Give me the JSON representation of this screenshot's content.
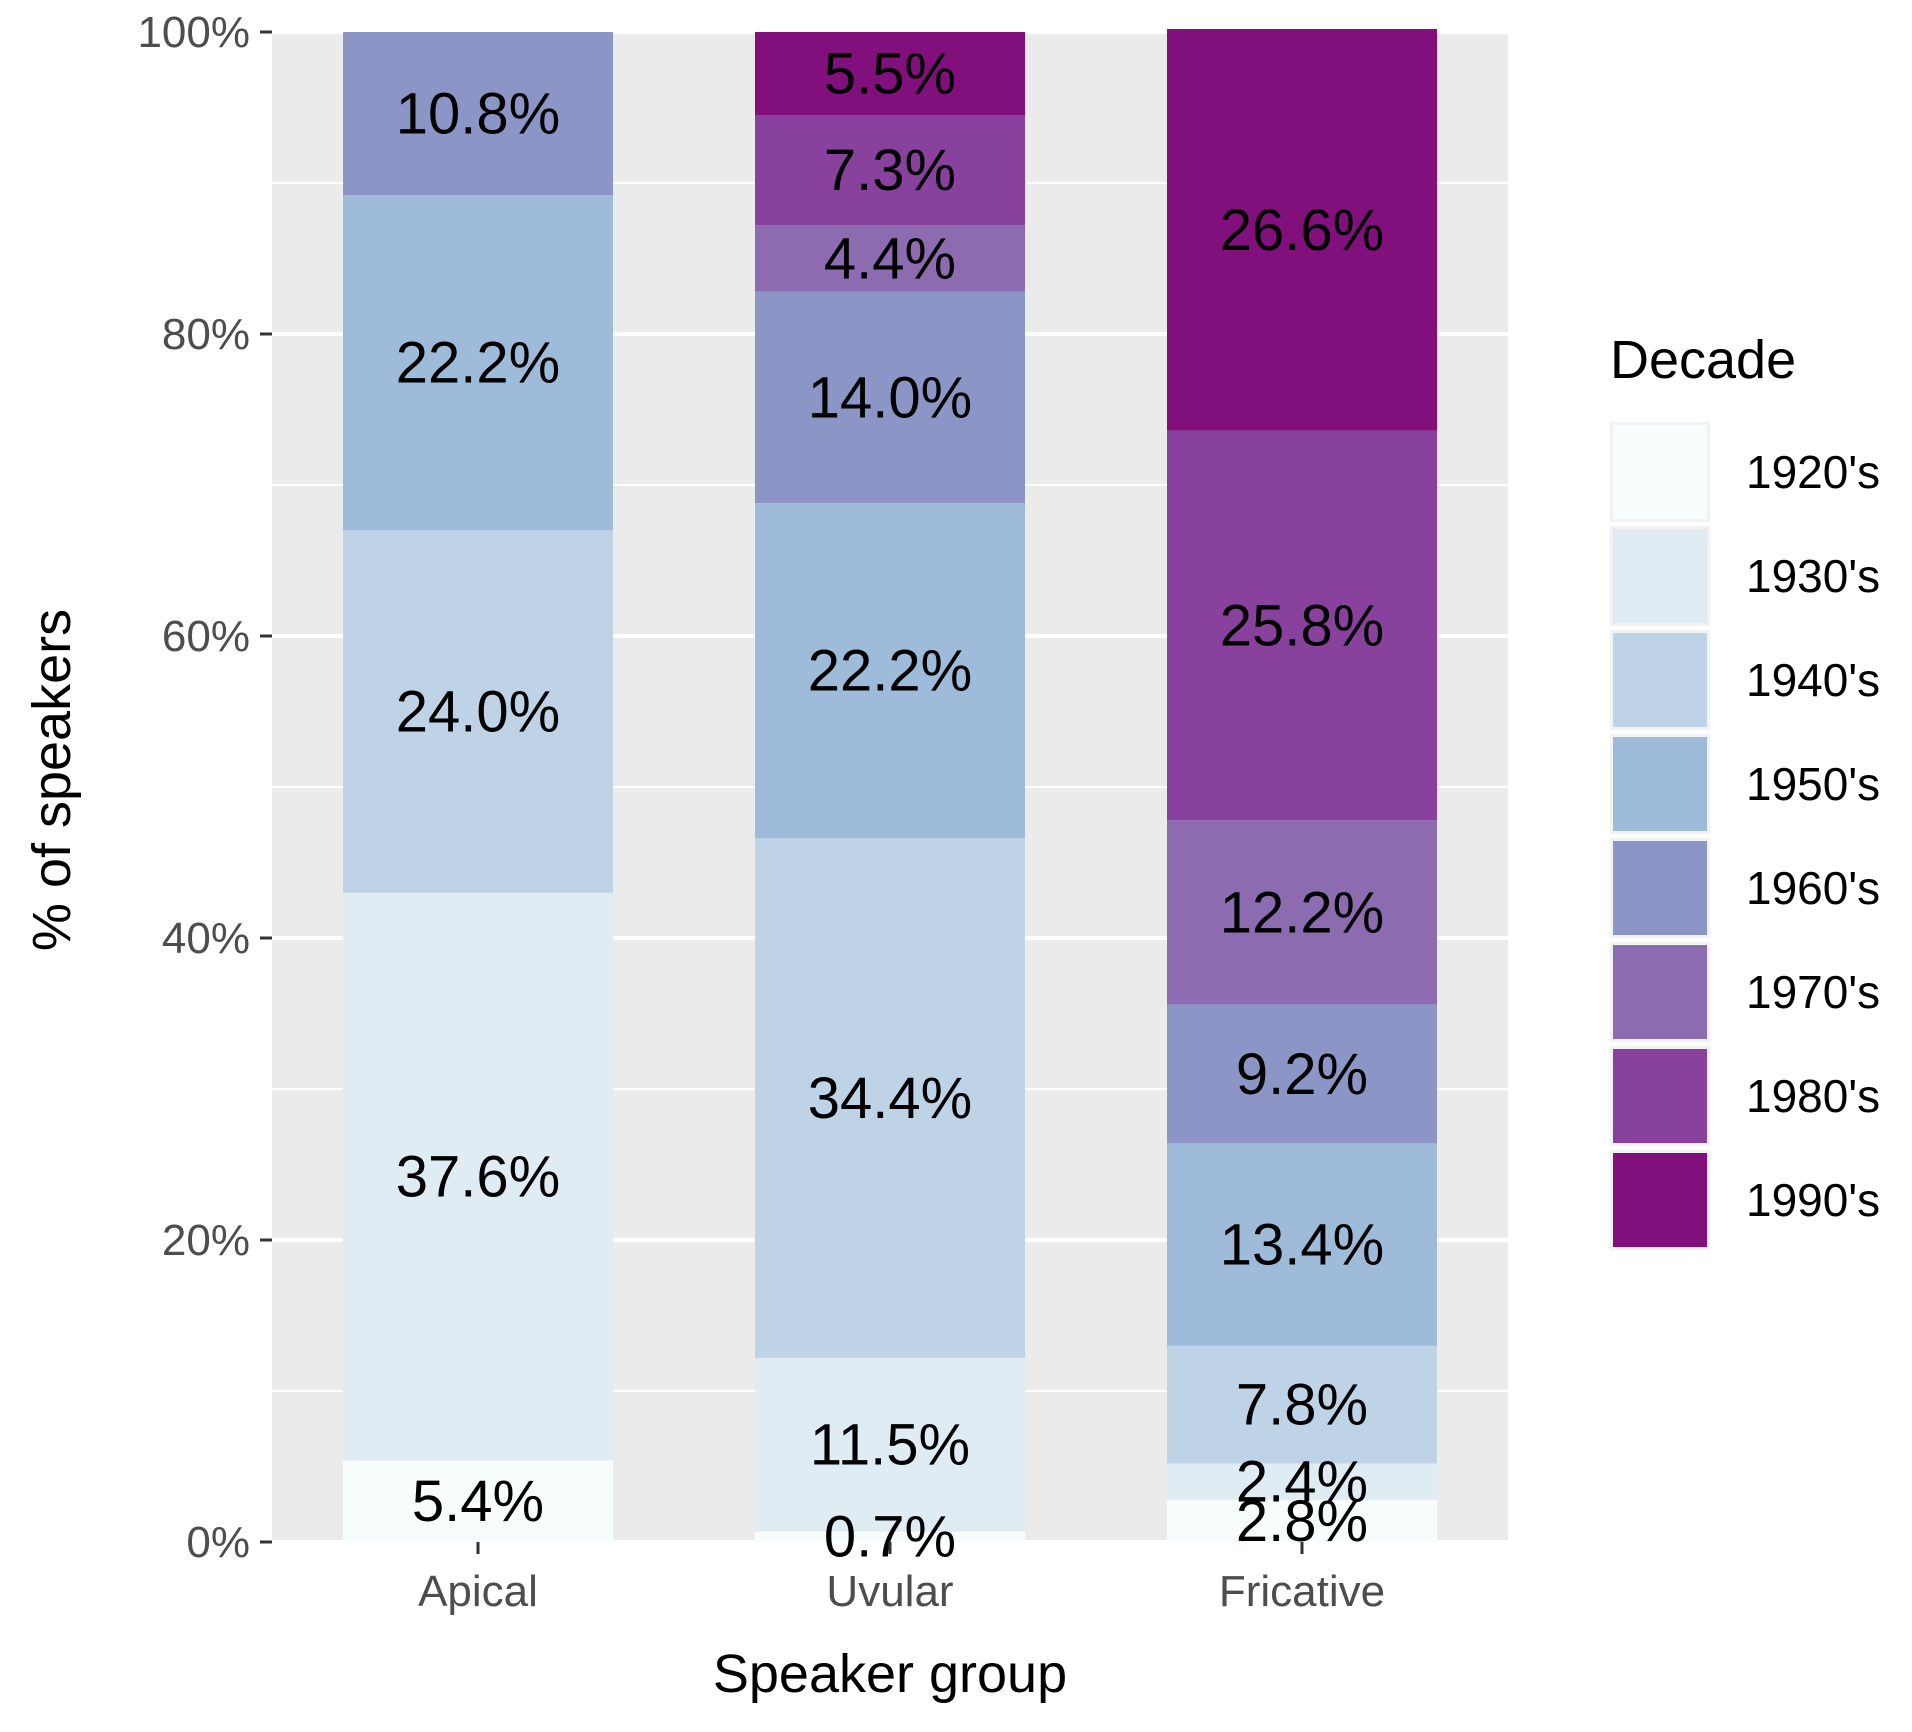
{
  "chart_data": {
    "type": "bar",
    "stacked": true,
    "percent": true,
    "title": "",
    "xlabel": "Speaker group",
    "ylabel": "% of speakers",
    "ylim": [
      0,
      100
    ],
    "y_ticks": [
      {
        "value": 0,
        "label": "0%"
      },
      {
        "value": 20,
        "label": "20%"
      },
      {
        "value": 40,
        "label": "40%"
      },
      {
        "value": 60,
        "label": "60%"
      },
      {
        "value": 80,
        "label": "80%"
      },
      {
        "value": 100,
        "label": "100%"
      }
    ],
    "categories": [
      "Apical",
      "Uvular",
      "Fricative"
    ],
    "legend_title": "Decade",
    "legend_position": "right",
    "series": [
      {
        "name": "1920's",
        "color": "#f7fcfd",
        "values": [
          5.4,
          0.7,
          2.8
        ],
        "labels": [
          "5.4%",
          "0.7%",
          "2.8%"
        ]
      },
      {
        "name": "1930's",
        "color": "#e0ecf4",
        "values": [
          37.6,
          11.5,
          2.4
        ],
        "labels": [
          "37.6%",
          "11.5%",
          "2.4%"
        ]
      },
      {
        "name": "1940's",
        "color": "#bfd3e6",
        "values": [
          24.0,
          34.4,
          7.8
        ],
        "labels": [
          "24.0%",
          "34.4%",
          "7.8%"
        ]
      },
      {
        "name": "1950's",
        "color": "#9ebcda",
        "values": [
          22.2,
          22.2,
          13.4
        ],
        "labels": [
          "22.2%",
          "22.2%",
          "13.4%"
        ]
      },
      {
        "name": "1960's",
        "color": "#8c96c6",
        "values": [
          10.8,
          14.0,
          9.2
        ],
        "labels": [
          "10.8%",
          "14.0%",
          "9.2%"
        ]
      },
      {
        "name": "1970's",
        "color": "#8c6bb1",
        "values": [
          0,
          4.4,
          12.2
        ],
        "labels": [
          "",
          "4.4%",
          "12.2%"
        ]
      },
      {
        "name": "1980's",
        "color": "#88419d",
        "values": [
          0,
          7.3,
          25.8
        ],
        "labels": [
          "",
          "7.3%",
          "25.8%"
        ]
      },
      {
        "name": "1990's",
        "color": "#810f7c",
        "values": [
          0,
          5.5,
          26.6
        ],
        "labels": [
          "",
          "5.5%",
          "26.6%"
        ]
      }
    ],
    "panel_background": "#ebebeb",
    "grid": true
  }
}
